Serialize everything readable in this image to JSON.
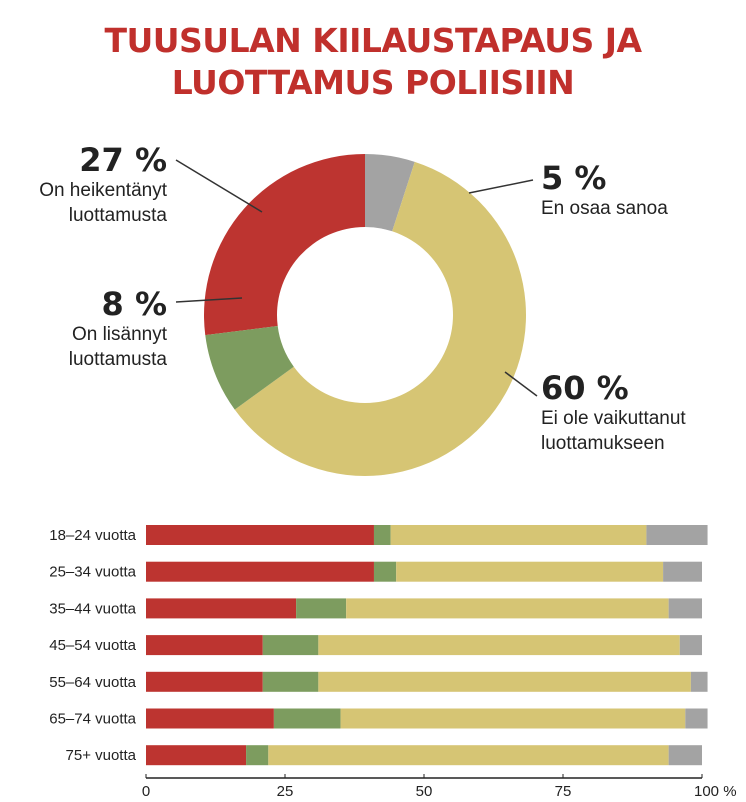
{
  "title_line1": "TUUSULAN KIILAUSTAPAUS JA",
  "title_line2": "LUOTTAMUS POLIISIIN",
  "colors": {
    "heikentanyt": "#bd3430",
    "lisannyt": "#7d9c5f",
    "ei_vaikuttanut": "#d6c574",
    "en_osaa": "#a3a3a3",
    "title": "#c0302c"
  },
  "chart_data": [
    {
      "type": "pie",
      "categories": [
        "On heikentänyt luottamusta",
        "En osaa sanoa",
        "Ei ole vaikuttanut luottamukseen",
        "On lisännyt luottamusta"
      ],
      "values": [
        27,
        5,
        60,
        8
      ],
      "value_labels": [
        "27 %",
        "5 %",
        "60 %",
        "8 %"
      ],
      "label_lines": [
        [
          "On heikentänyt",
          "luottamusta"
        ],
        [
          "En osaa sanoa"
        ],
        [
          "Ei ole vaikuttanut",
          "luottamukseen"
        ],
        [
          "On lisännyt",
          "luottamusta"
        ]
      ]
    },
    {
      "type": "bar",
      "orientation": "horizontal",
      "stacked": true,
      "categories": [
        "18–24 vuotta",
        "25–34 vuotta",
        "35–44 vuotta",
        "45–54 vuotta",
        "55–64 vuotta",
        "65–74 vuotta",
        "75+ vuotta"
      ],
      "series": [
        {
          "key": "heikentanyt",
          "values": [
            41,
            41,
            27,
            21,
            21,
            23,
            18
          ]
        },
        {
          "key": "lisannyt",
          "values": [
            3,
            4,
            9,
            10,
            10,
            12,
            4
          ]
        },
        {
          "key": "ei_vaikuttanut",
          "values": [
            46,
            48,
            58,
            65,
            67,
            62,
            72
          ]
        },
        {
          "key": "en_osaa",
          "values": [
            11,
            7,
            6,
            4,
            3,
            4,
            6
          ]
        }
      ],
      "xlim": [
        0,
        100
      ],
      "xticks": [
        0,
        25,
        50,
        75,
        100
      ],
      "xtick_labels": [
        "0",
        "25",
        "50",
        "75",
        "100 %"
      ]
    }
  ]
}
